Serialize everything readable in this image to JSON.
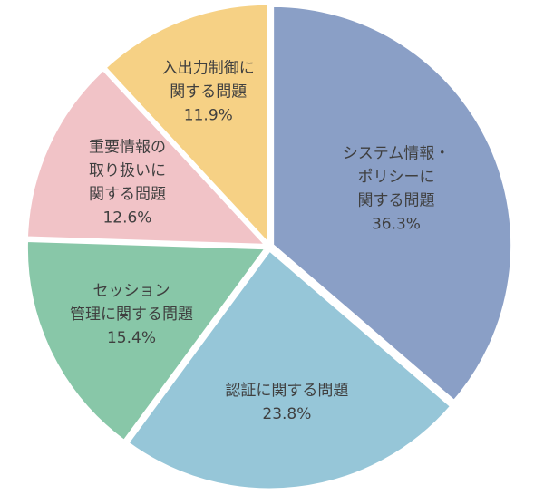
{
  "chart_data": {
    "type": "pie",
    "title": "",
    "start": "12 o'clock",
    "direction": "clockwise",
    "exploded": true,
    "slices": [
      {
        "label_lines": [
          "システム情報・",
          "ポリシーに",
          "関する問題"
        ],
        "value": 36.3,
        "value_text": "36.3%",
        "color": "#8a9fc6"
      },
      {
        "label_lines": [
          "認証に関する問題"
        ],
        "value": 23.8,
        "value_text": "23.8%",
        "color": "#96c6d8"
      },
      {
        "label_lines": [
          "セッション",
          "管理に関する問題"
        ],
        "value": 15.4,
        "value_text": "15.4%",
        "color": "#88c7a8"
      },
      {
        "label_lines": [
          "重要情報の",
          "取り扱いに",
          "関する問題"
        ],
        "value": 12.6,
        "value_text": "12.6%",
        "color": "#f1c3c7"
      },
      {
        "label_lines": [
          "入出力制御に",
          "関する問題"
        ],
        "value": 11.9,
        "value_text": "11.9%",
        "color": "#f6d185"
      }
    ]
  }
}
